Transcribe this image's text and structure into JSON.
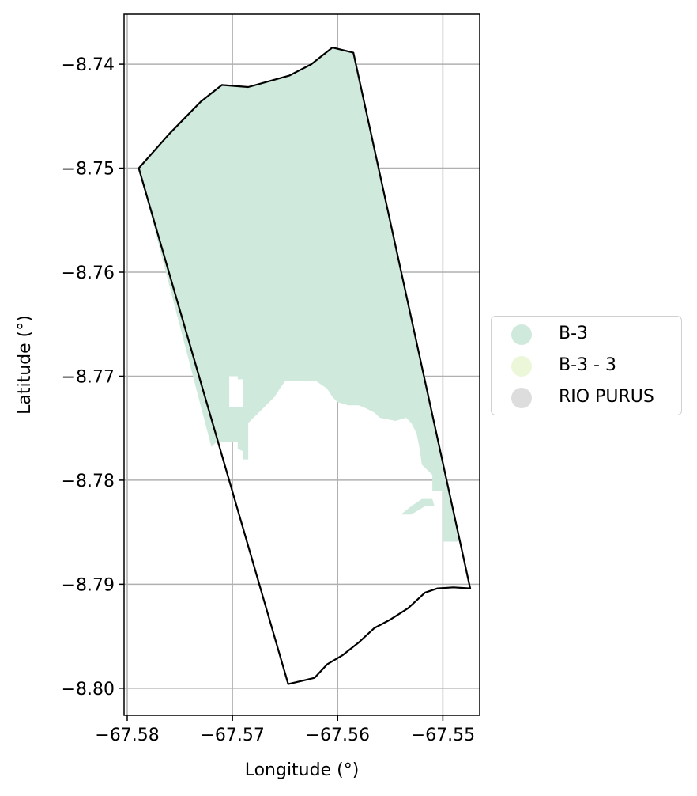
{
  "chart_data": {
    "type": "map",
    "xlabel": "Longitude (°)",
    "ylabel": "Latitude (°)",
    "xlim": [
      -67.5803,
      -67.5465
    ],
    "ylim": [
      -8.8026,
      -8.7352
    ],
    "xticks": [
      -67.58,
      -67.57,
      -67.56,
      -67.55
    ],
    "xtick_labels": [
      "−67.58",
      "−67.57",
      "−67.56",
      "−67.55"
    ],
    "yticks": [
      -8.74,
      -8.75,
      -8.76,
      -8.77,
      -8.78,
      -8.79,
      -8.8
    ],
    "ytick_labels": [
      "−8.74",
      "−8.75",
      "−8.76",
      "−8.77",
      "−8.78",
      "−8.79",
      "−8.80"
    ],
    "grid": true,
    "legend_position": "center right, outside",
    "legend": [
      {
        "label": "B-3",
        "color": "#cfeadd"
      },
      {
        "label": "B-3 - 3",
        "color": "#ecf7d9"
      },
      {
        "label": "RIO PURUS",
        "color": "#dddddd"
      }
    ],
    "boundary": {
      "name": "boundary",
      "stroke": "#000000",
      "coords": [
        [
          -67.5789,
          -8.75
        ],
        [
          -67.576,
          -8.7467
        ],
        [
          -67.573,
          -8.7436
        ],
        [
          -67.571,
          -8.742
        ],
        [
          -67.5685,
          -8.7422
        ],
        [
          -67.5646,
          -8.7411
        ],
        [
          -67.5625,
          -8.74
        ],
        [
          -67.5605,
          -8.7384
        ],
        [
          -67.5585,
          -8.7389
        ],
        [
          -67.5474,
          -8.7904
        ],
        [
          -67.549,
          -8.7903
        ],
        [
          -67.5505,
          -8.7904
        ],
        [
          -67.5517,
          -8.7908
        ],
        [
          -67.5533,
          -8.7923
        ],
        [
          -67.555,
          -8.7934
        ],
        [
          -67.5565,
          -8.7942
        ],
        [
          -67.558,
          -8.7956
        ],
        [
          -67.5595,
          -8.7968
        ],
        [
          -67.561,
          -8.7977
        ],
        [
          -67.5622,
          -8.799
        ],
        [
          -67.5647,
          -8.7996
        ],
        [
          -67.5789,
          -8.75
        ]
      ]
    },
    "zones": [
      {
        "name": "B-3",
        "color": "#cfeadd",
        "coords": [
          [
            -67.5789,
            -8.75
          ],
          [
            -67.576,
            -8.7467
          ],
          [
            -67.573,
            -8.7436
          ],
          [
            -67.571,
            -8.742
          ],
          [
            -67.5685,
            -8.7422
          ],
          [
            -67.5646,
            -8.7411
          ],
          [
            -67.5625,
            -8.74
          ],
          [
            -67.5605,
            -8.7384
          ],
          [
            -67.5585,
            -8.7389
          ],
          [
            -67.5537,
            -8.7613
          ],
          [
            -67.5489,
            -8.7837
          ],
          [
            -67.5483,
            -8.7859
          ],
          [
            -67.55,
            -8.7859
          ],
          [
            -67.55,
            -8.781
          ],
          [
            -67.551,
            -8.781
          ],
          [
            -67.551,
            -8.7795
          ],
          [
            -67.5515,
            -8.779
          ],
          [
            -67.552,
            -8.7785
          ],
          [
            -67.5522,
            -8.777
          ],
          [
            -67.5525,
            -8.7755
          ],
          [
            -67.553,
            -8.7745
          ],
          [
            -67.5535,
            -8.774
          ],
          [
            -67.5545,
            -8.7743
          ],
          [
            -67.556,
            -8.774
          ],
          [
            -67.5565,
            -8.7735
          ],
          [
            -67.5575,
            -8.773
          ],
          [
            -67.558,
            -8.7728
          ],
          [
            -67.5588,
            -8.7728
          ],
          [
            -67.559,
            -8.7728
          ],
          [
            -67.56,
            -8.7725
          ],
          [
            -67.5605,
            -8.772
          ],
          [
            -67.561,
            -8.7712
          ],
          [
            -67.562,
            -8.7705
          ],
          [
            -67.564,
            -8.7705
          ],
          [
            -67.565,
            -8.7705
          ],
          [
            -67.5655,
            -8.7712
          ],
          [
            -67.566,
            -8.772
          ],
          [
            -67.5665,
            -8.7725
          ],
          [
            -67.567,
            -8.773
          ],
          [
            -67.5675,
            -8.7735
          ],
          [
            -67.568,
            -8.774
          ],
          [
            -67.5685,
            -8.7745
          ],
          [
            -67.5685,
            -8.778
          ],
          [
            -67.569,
            -8.778
          ],
          [
            -67.569,
            -8.7772
          ],
          [
            -67.5695,
            -8.777
          ],
          [
            -67.5695,
            -8.7763
          ],
          [
            -67.5715,
            -8.7763
          ],
          [
            -67.572,
            -8.7768
          ],
          [
            -67.5789,
            -8.75
          ]
        ]
      },
      {
        "name": "B-3 patch",
        "color": "#cfeadd",
        "coords": [
          [
            -67.554,
            -8.7833
          ],
          [
            -67.553,
            -8.7825
          ],
          [
            -67.552,
            -8.7818
          ],
          [
            -67.551,
            -8.7818
          ],
          [
            -67.5508,
            -8.7825
          ],
          [
            -67.5517,
            -8.7825
          ],
          [
            -67.553,
            -8.7833
          ],
          [
            -67.554,
            -8.7833
          ]
        ]
      }
    ],
    "holes": [
      {
        "name": "white notch",
        "coords": [
          [
            -67.5703,
            -8.77
          ],
          [
            -67.5695,
            -8.77
          ],
          [
            -67.5695,
            -8.7703
          ],
          [
            -67.569,
            -8.7703
          ],
          [
            -67.569,
            -8.773
          ],
          [
            -67.5703,
            -8.773
          ]
        ]
      }
    ]
  }
}
